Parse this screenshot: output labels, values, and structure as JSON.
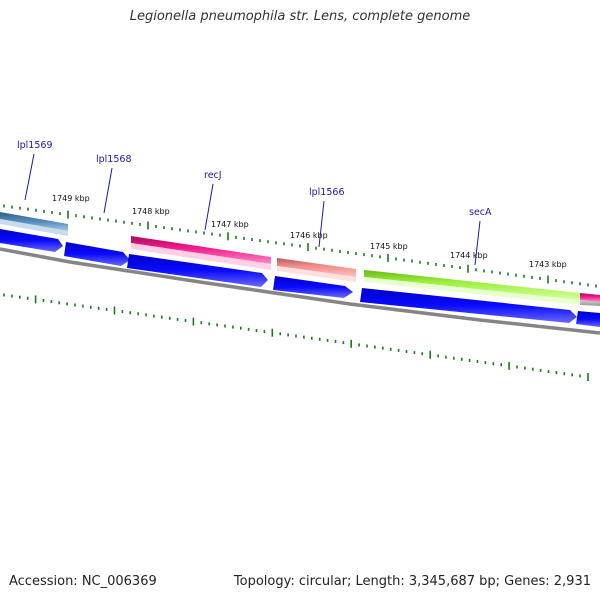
{
  "title": "Legionella pneumophila str. Lens, complete genome",
  "accession": "Accession: NC_006369",
  "summary": "Topology: circular; Length: 3,345,687 bp; Genes: 2,931",
  "colors": {
    "backbone": "#7f7f7f",
    "tick": "#1a7a1a",
    "gene_label": "#1a1aa8",
    "cds_blue": "#0000e6",
    "steel_blue": "#3f77a8",
    "magenta": "#e8147f",
    "salmon": "#e97c7c",
    "lime": "#8fe82a"
  },
  "kbp_labels": [
    "1749 kbp",
    "1748 kbp",
    "1747 kbp",
    "1746 kbp",
    "1745 kbp",
    "1744 kbp",
    "1743 kbp"
  ],
  "gene_labels": [
    "lpl1569",
    "lpl1568",
    "recJ",
    "lpl1566",
    "secA"
  ]
}
